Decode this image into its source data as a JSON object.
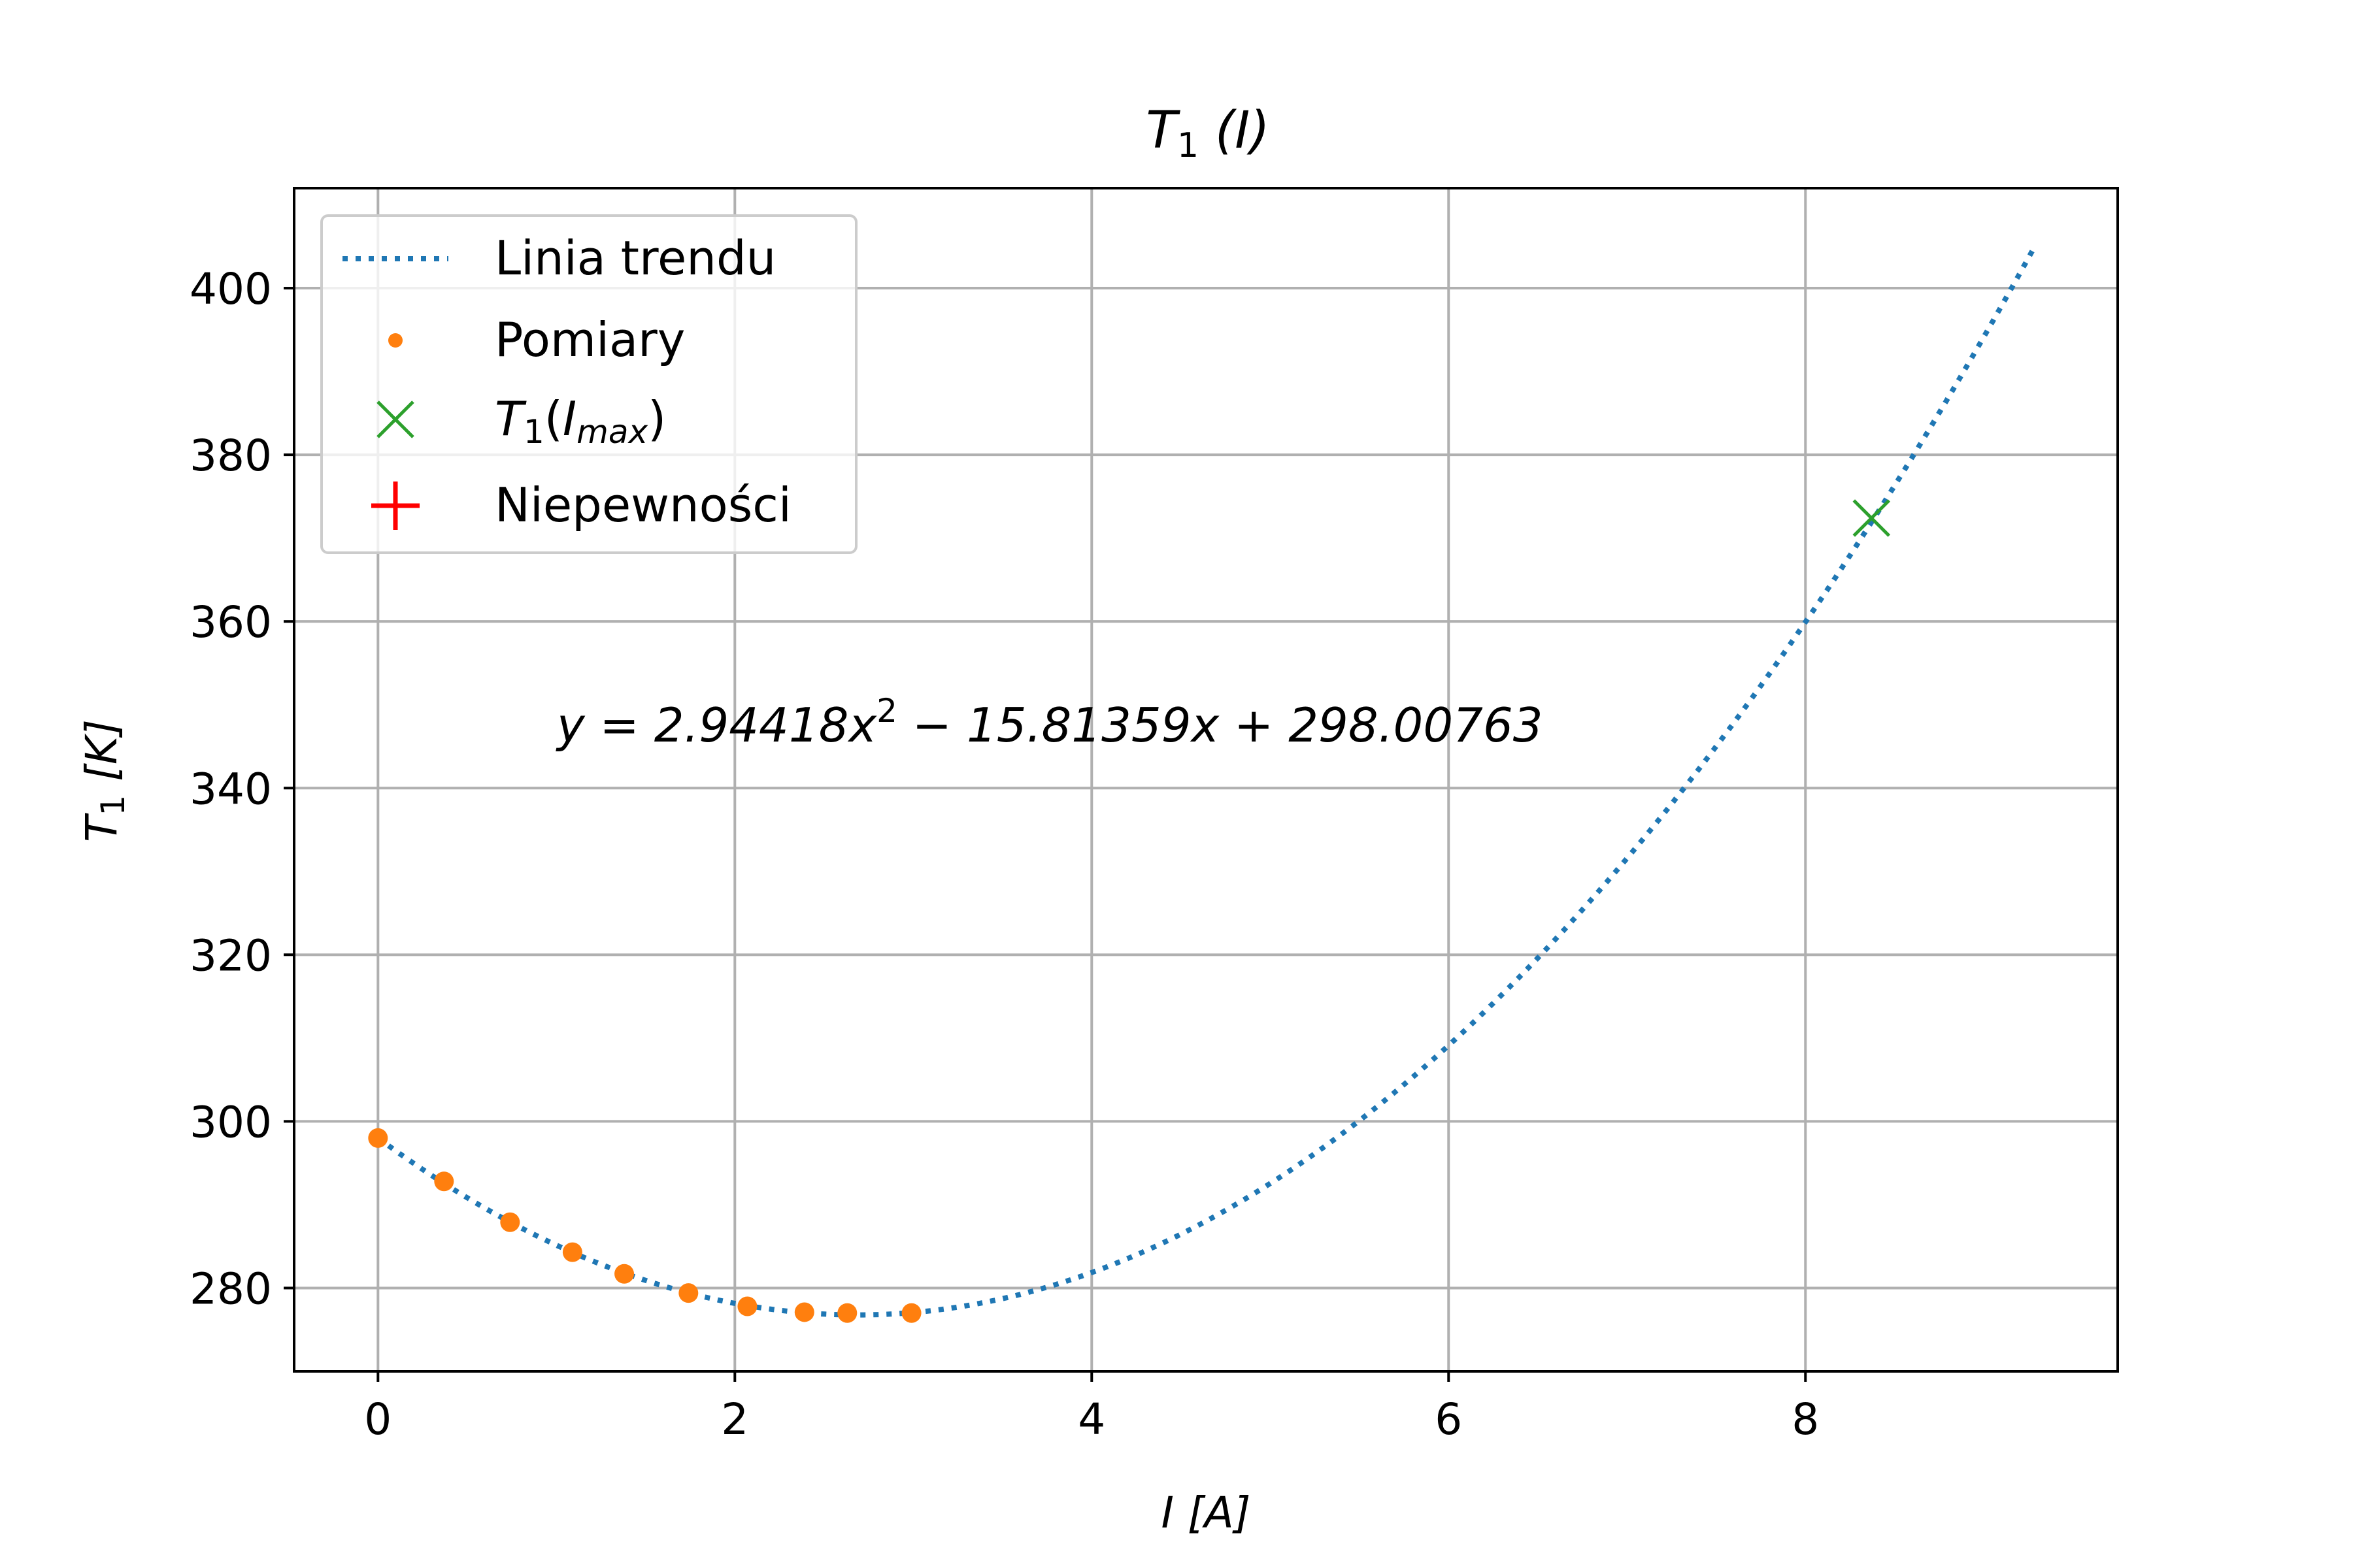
{
  "chart_data": {
    "type": "scatter",
    "title": "T₁ (I)",
    "xlabel": "I [A]",
    "ylabel": "T₁ [K]",
    "xlim": [
      -0.47,
      9.75
    ],
    "ylim": [
      270,
      412
    ],
    "xticks": [
      0,
      2,
      4,
      6,
      8
    ],
    "yticks": [
      280,
      300,
      320,
      340,
      360,
      380,
      400
    ],
    "grid": true,
    "legend_position": "upper left",
    "equation_annotation": "y = 2.94418x² − 15.81359x + 298.00763",
    "series": [
      {
        "name": "Linia trendu",
        "kind": "line",
        "style": "dotted",
        "color": "#1f77b4",
        "x_range": [
          0,
          9.28
        ],
        "coefficients": {
          "a": 2.94418,
          "b": -15.81359,
          "c": 298.00763
        }
      },
      {
        "name": "Pomiary",
        "kind": "points",
        "color": "#ff7f0e",
        "x": [
          0.0,
          0.37,
          0.74,
          1.09,
          1.38,
          1.74,
          2.07,
          2.39,
          2.63,
          2.99
        ],
        "y": [
          298.0,
          292.8,
          287.9,
          284.3,
          281.7,
          279.4,
          277.8,
          277.1,
          277.0,
          277.0
        ]
      },
      {
        "name": "T₁(I_max)",
        "kind": "marker-x",
        "color": "#2ca02c",
        "x": [
          8.37
        ],
        "y": [
          372.4
        ]
      },
      {
        "name": "Niepewności",
        "kind": "errorbar",
        "color": "#ff0000",
        "x": [],
        "y": []
      }
    ]
  },
  "legend": {
    "trend": "Linia trendu",
    "points": "Pomiary",
    "max_base": "T",
    "max_sub1": "1",
    "max_paren_open": "(I",
    "max_sub2": "max",
    "max_paren_close": ")",
    "uncert": "Niepewności"
  },
  "labels": {
    "title_base": "T",
    "title_sub": "1",
    "title_rest": " (I)",
    "x_label": "I [A]",
    "y_label_base": "T",
    "y_label_sub": "1",
    "y_label_rest": " [K]",
    "eq_part1": "y = 2.94418x",
    "eq_sup": "2",
    "eq_part2": " − 15.81359x + 298.00763"
  }
}
